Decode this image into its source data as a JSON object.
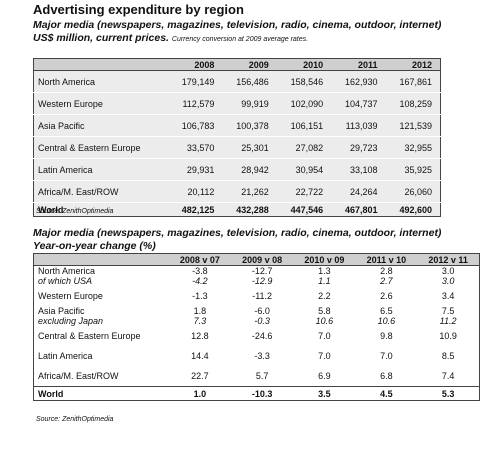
{
  "title": "Advertising expenditure by region",
  "table1": {
    "subtitle": "Major media (newspapers, magazines, television, radio, cinema, outdoor, internet)",
    "units": "US$ million, current prices.",
    "note": "Currency conversion at 2009 average rates.",
    "columns": [
      "2008",
      "2009",
      "2010",
      "2011",
      "2012"
    ],
    "rows": [
      {
        "name": "North America",
        "values": [
          "179,149",
          "156,486",
          "158,546",
          "162,930",
          "167,861"
        ]
      },
      {
        "name": "Western Europe",
        "values": [
          "112,579",
          "99,919",
          "102,090",
          "104,737",
          "108,259"
        ]
      },
      {
        "name": "Asia Pacific",
        "values": [
          "106,783",
          "100,378",
          "106,151",
          "113,039",
          "121,539"
        ]
      },
      {
        "name": "Central & Eastern Europe",
        "values": [
          "33,570",
          "25,301",
          "27,082",
          "29,723",
          "32,955"
        ]
      },
      {
        "name": "Latin America",
        "values": [
          "29,931",
          "28,942",
          "30,954",
          "33,108",
          "35,925"
        ]
      },
      {
        "name": "Africa/M. East/ROW",
        "values": [
          "20,112",
          "21,262",
          "22,722",
          "24,264",
          "26,060"
        ]
      },
      {
        "name": "World",
        "values": [
          "482,125",
          "432,288",
          "447,546",
          "467,801",
          "492,600"
        ]
      }
    ],
    "source": "Source: ZenithOptimedia"
  },
  "table2": {
    "subtitle": "Major media (newspapers, magazines, television, radio, cinema, outdoor, internet)",
    "units": "Year-on-year change (%)",
    "columns": [
      "2008 v 07",
      "2009 v 08",
      "2010 v 09",
      "2011 v 10",
      "2012 v 11"
    ],
    "rows": [
      {
        "name": "North America",
        "values": [
          "-3.8",
          "-12.7",
          "1.3",
          "2.8",
          "3.0"
        ],
        "sub": {
          "name": "of which USA",
          "values": [
            "-4.2",
            "-12.9",
            "1.1",
            "2.7",
            "3.0"
          ]
        }
      },
      {
        "name": "Western Europe",
        "values": [
          "-1.3",
          "-11.2",
          "2.2",
          "2.6",
          "3.4"
        ]
      },
      {
        "name": "Asia Pacific",
        "values": [
          "1.8",
          "-6.0",
          "5.8",
          "6.5",
          "7.5"
        ],
        "sub": {
          "name": "excluding Japan",
          "values": [
            "7.3",
            "-0.3",
            "10.6",
            "10.6",
            "11.2"
          ]
        }
      },
      {
        "name": "Central & Eastern Europe",
        "values": [
          "12.8",
          "-24.6",
          "7.0",
          "9.8",
          "10.9"
        ]
      },
      {
        "name": "Latin America",
        "values": [
          "14.4",
          "-3.3",
          "7.0",
          "7.0",
          "8.5"
        ]
      },
      {
        "name": "Africa/M. East/ROW",
        "values": [
          "22.7",
          "5.7",
          "6.9",
          "6.8",
          "7.4"
        ]
      },
      {
        "name": "World",
        "values": [
          "1.0",
          "-10.3",
          "3.5",
          "4.5",
          "5.3"
        ]
      }
    ],
    "source": "Source: ZenithOptimedia"
  }
}
